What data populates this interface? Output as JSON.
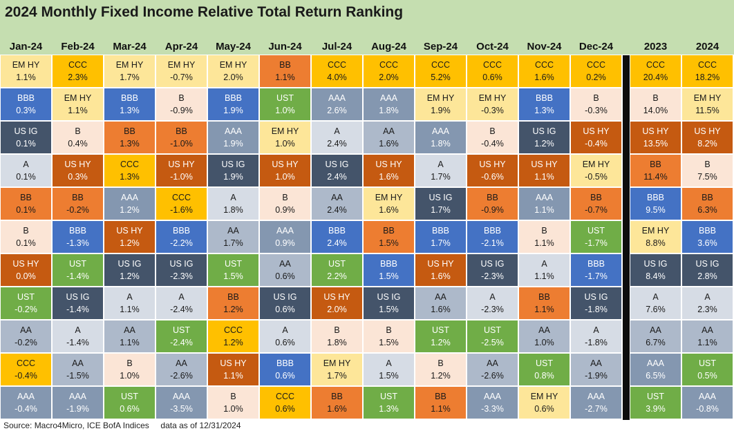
{
  "title": "2024 Monthly Fixed Income Relative Total Return Ranking",
  "source_note": "Source: Macro4Micro, ICE BofA Indices     data as of 12/31/2024",
  "colors": {
    "title_background": "#c5deb0",
    "divider": "#0d0d0d",
    "EM HY": "#fde699",
    "CCC": "#ffc000",
    "BBB": "#4472c4",
    "US IG": "#44546a",
    "A": "#d6dce5",
    "BB": "#ed7d31",
    "B": "#fbe5d6",
    "US HY": "#c55a11",
    "UST": "#70ad47",
    "AA": "#adb9ca",
    "AAA": "#8497b0"
  },
  "light_text_assets": [
    "BBB",
    "US IG",
    "US HY",
    "UST",
    "AAA"
  ],
  "chart_data": {
    "type": "table",
    "title": "2024 Monthly Fixed Income Relative Total Return Ranking",
    "ranking_order": "highest to lowest total return per column",
    "unit": "%",
    "columns": [
      {
        "label": "Jan-24",
        "rankings": [
          {
            "asset": "EM HY",
            "return": "1.1%"
          },
          {
            "asset": "BBB",
            "return": "0.3%"
          },
          {
            "asset": "US IG",
            "return": "0.1%"
          },
          {
            "asset": "A",
            "return": "0.1%"
          },
          {
            "asset": "BB",
            "return": "0.1%"
          },
          {
            "asset": "B",
            "return": "0.1%"
          },
          {
            "asset": "US HY",
            "return": "0.0%"
          },
          {
            "asset": "UST",
            "return": "-0.2%"
          },
          {
            "asset": "AA",
            "return": "-0.2%"
          },
          {
            "asset": "CCC",
            "return": "-0.4%"
          },
          {
            "asset": "AAA",
            "return": "-0.4%"
          }
        ]
      },
      {
        "label": "Feb-24",
        "rankings": [
          {
            "asset": "CCC",
            "return": "2.3%"
          },
          {
            "asset": "EM HY",
            "return": "1.1%"
          },
          {
            "asset": "B",
            "return": "0.4%"
          },
          {
            "asset": "US HY",
            "return": "0.3%"
          },
          {
            "asset": "BB",
            "return": "-0.2%"
          },
          {
            "asset": "BBB",
            "return": "-1.3%"
          },
          {
            "asset": "UST",
            "return": "-1.4%"
          },
          {
            "asset": "US IG",
            "return": "-1.4%"
          },
          {
            "asset": "A",
            "return": "-1.4%"
          },
          {
            "asset": "AA",
            "return": "-1.5%"
          },
          {
            "asset": "AAA",
            "return": "-1.9%"
          }
        ]
      },
      {
        "label": "Mar-24",
        "rankings": [
          {
            "asset": "EM HY",
            "return": "1.7%"
          },
          {
            "asset": "BBB",
            "return": "1.3%"
          },
          {
            "asset": "BB",
            "return": "1.3%"
          },
          {
            "asset": "CCC",
            "return": "1.3%"
          },
          {
            "asset": "AAA",
            "return": "1.2%"
          },
          {
            "asset": "US HY",
            "return": "1.2%"
          },
          {
            "asset": "US IG",
            "return": "1.2%"
          },
          {
            "asset": "A",
            "return": "1.1%"
          },
          {
            "asset": "AA",
            "return": "1.1%"
          },
          {
            "asset": "B",
            "return": "1.0%"
          },
          {
            "asset": "UST",
            "return": "0.6%"
          }
        ]
      },
      {
        "label": "Apr-24",
        "rankings": [
          {
            "asset": "EM HY",
            "return": "-0.7%"
          },
          {
            "asset": "B",
            "return": "-0.9%"
          },
          {
            "asset": "BB",
            "return": "-1.0%"
          },
          {
            "asset": "US HY",
            "return": "-1.0%"
          },
          {
            "asset": "CCC",
            "return": "-1.6%"
          },
          {
            "asset": "BBB",
            "return": "-2.2%"
          },
          {
            "asset": "US IG",
            "return": "-2.3%"
          },
          {
            "asset": "A",
            "return": "-2.4%"
          },
          {
            "asset": "UST",
            "return": "-2.4%"
          },
          {
            "asset": "AA",
            "return": "-2.6%"
          },
          {
            "asset": "AAA",
            "return": "-3.5%"
          }
        ]
      },
      {
        "label": "May-24",
        "rankings": [
          {
            "asset": "EM HY",
            "return": "2.0%"
          },
          {
            "asset": "BBB",
            "return": "1.9%"
          },
          {
            "asset": "AAA",
            "return": "1.9%"
          },
          {
            "asset": "US IG",
            "return": "1.9%"
          },
          {
            "asset": "A",
            "return": "1.8%"
          },
          {
            "asset": "AA",
            "return": "1.7%"
          },
          {
            "asset": "UST",
            "return": "1.5%"
          },
          {
            "asset": "BB",
            "return": "1.2%"
          },
          {
            "asset": "CCC",
            "return": "1.2%"
          },
          {
            "asset": "US HY",
            "return": "1.1%"
          },
          {
            "asset": "B",
            "return": "1.0%"
          }
        ]
      },
      {
        "label": "Jun-24",
        "rankings": [
          {
            "asset": "BB",
            "return": "1.1%"
          },
          {
            "asset": "UST",
            "return": "1.0%"
          },
          {
            "asset": "EM HY",
            "return": "1.0%"
          },
          {
            "asset": "US HY",
            "return": "1.0%"
          },
          {
            "asset": "B",
            "return": "0.9%"
          },
          {
            "asset": "AAA",
            "return": "0.9%"
          },
          {
            "asset": "AA",
            "return": "0.6%"
          },
          {
            "asset": "US IG",
            "return": "0.6%"
          },
          {
            "asset": "A",
            "return": "0.6%"
          },
          {
            "asset": "BBB",
            "return": "0.6%"
          },
          {
            "asset": "CCC",
            "return": "0.6%"
          }
        ]
      },
      {
        "label": "Jul-24",
        "rankings": [
          {
            "asset": "CCC",
            "return": "4.0%"
          },
          {
            "asset": "AAA",
            "return": "2.6%"
          },
          {
            "asset": "A",
            "return": "2.4%"
          },
          {
            "asset": "US IG",
            "return": "2.4%"
          },
          {
            "asset": "AA",
            "return": "2.4%"
          },
          {
            "asset": "BBB",
            "return": "2.4%"
          },
          {
            "asset": "UST",
            "return": "2.2%"
          },
          {
            "asset": "US HY",
            "return": "2.0%"
          },
          {
            "asset": "B",
            "return": "1.8%"
          },
          {
            "asset": "EM HY",
            "return": "1.7%"
          },
          {
            "asset": "BB",
            "return": "1.6%"
          }
        ]
      },
      {
        "label": "Aug-24",
        "rankings": [
          {
            "asset": "CCC",
            "return": "2.0%"
          },
          {
            "asset": "AAA",
            "return": "1.8%"
          },
          {
            "asset": "AA",
            "return": "1.6%"
          },
          {
            "asset": "US HY",
            "return": "1.6%"
          },
          {
            "asset": "EM HY",
            "return": "1.6%"
          },
          {
            "asset": "BB",
            "return": "1.5%"
          },
          {
            "asset": "BBB",
            "return": "1.5%"
          },
          {
            "asset": "US IG",
            "return": "1.5%"
          },
          {
            "asset": "B",
            "return": "1.5%"
          },
          {
            "asset": "A",
            "return": "1.5%"
          },
          {
            "asset": "UST",
            "return": "1.3%"
          }
        ]
      },
      {
        "label": "Sep-24",
        "rankings": [
          {
            "asset": "CCC",
            "return": "5.2%"
          },
          {
            "asset": "EM HY",
            "return": "1.9%"
          },
          {
            "asset": "AAA",
            "return": "1.8%"
          },
          {
            "asset": "A",
            "return": "1.7%"
          },
          {
            "asset": "US IG",
            "return": "1.7%"
          },
          {
            "asset": "BBB",
            "return": "1.7%"
          },
          {
            "asset": "US HY",
            "return": "1.6%"
          },
          {
            "asset": "AA",
            "return": "1.6%"
          },
          {
            "asset": "UST",
            "return": "1.2%"
          },
          {
            "asset": "B",
            "return": "1.2%"
          },
          {
            "asset": "BB",
            "return": "1.1%"
          }
        ]
      },
      {
        "label": "Oct-24",
        "rankings": [
          {
            "asset": "CCC",
            "return": "0.6%"
          },
          {
            "asset": "EM HY",
            "return": "-0.3%"
          },
          {
            "asset": "B",
            "return": "-0.4%"
          },
          {
            "asset": "US HY",
            "return": "-0.6%"
          },
          {
            "asset": "BB",
            "return": "-0.9%"
          },
          {
            "asset": "BBB",
            "return": "-2.1%"
          },
          {
            "asset": "US IG",
            "return": "-2.3%"
          },
          {
            "asset": "A",
            "return": "-2.3%"
          },
          {
            "asset": "UST",
            "return": "-2.5%"
          },
          {
            "asset": "AA",
            "return": "-2.6%"
          },
          {
            "asset": "AAA",
            "return": "-3.3%"
          }
        ]
      },
      {
        "label": "Nov-24",
        "rankings": [
          {
            "asset": "CCC",
            "return": "1.6%"
          },
          {
            "asset": "BBB",
            "return": "1.3%"
          },
          {
            "asset": "US IG",
            "return": "1.2%"
          },
          {
            "asset": "US HY",
            "return": "1.1%"
          },
          {
            "asset": "AAA",
            "return": "1.1%"
          },
          {
            "asset": "B",
            "return": "1.1%"
          },
          {
            "asset": "A",
            "return": "1.1%"
          },
          {
            "asset": "BB",
            "return": "1.1%"
          },
          {
            "asset": "AA",
            "return": "1.0%"
          },
          {
            "asset": "UST",
            "return": "0.8%"
          },
          {
            "asset": "EM HY",
            "return": "0.6%"
          }
        ]
      },
      {
        "label": "Dec-24",
        "rankings": [
          {
            "asset": "CCC",
            "return": "0.2%"
          },
          {
            "asset": "B",
            "return": "-0.3%"
          },
          {
            "asset": "US HY",
            "return": "-0.4%"
          },
          {
            "asset": "EM HY",
            "return": "-0.5%"
          },
          {
            "asset": "BB",
            "return": "-0.7%"
          },
          {
            "asset": "UST",
            "return": "-1.7%"
          },
          {
            "asset": "BBB",
            "return": "-1.7%"
          },
          {
            "asset": "US IG",
            "return": "-1.8%"
          },
          {
            "asset": "A",
            "return": "-1.8%"
          },
          {
            "asset": "AA",
            "return": "-1.9%"
          },
          {
            "asset": "AAA",
            "return": "-2.7%"
          }
        ]
      },
      {
        "label": "2023",
        "rankings": [
          {
            "asset": "CCC",
            "return": "20.4%"
          },
          {
            "asset": "B",
            "return": "14.0%"
          },
          {
            "asset": "US HY",
            "return": "13.5%"
          },
          {
            "asset": "BB",
            "return": "11.4%"
          },
          {
            "asset": "BBB",
            "return": "9.5%"
          },
          {
            "asset": "EM HY",
            "return": "8.8%"
          },
          {
            "asset": "US IG",
            "return": "8.4%"
          },
          {
            "asset": "A",
            "return": "7.6%"
          },
          {
            "asset": "AA",
            "return": "6.7%"
          },
          {
            "asset": "AAA",
            "return": "6.5%"
          },
          {
            "asset": "UST",
            "return": "3.9%"
          }
        ]
      },
      {
        "label": "2024",
        "rankings": [
          {
            "asset": "CCC",
            "return": "18.2%"
          },
          {
            "asset": "EM HY",
            "return": "11.5%"
          },
          {
            "asset": "US HY",
            "return": "8.2%"
          },
          {
            "asset": "B",
            "return": "7.5%"
          },
          {
            "asset": "BB",
            "return": "6.3%"
          },
          {
            "asset": "BBB",
            "return": "3.6%"
          },
          {
            "asset": "US IG",
            "return": "2.8%"
          },
          {
            "asset": "A",
            "return": "2.3%"
          },
          {
            "asset": "AA",
            "return": "1.1%"
          },
          {
            "asset": "UST",
            "return": "0.5%"
          },
          {
            "asset": "AAA",
            "return": "-0.8%"
          }
        ]
      }
    ]
  }
}
